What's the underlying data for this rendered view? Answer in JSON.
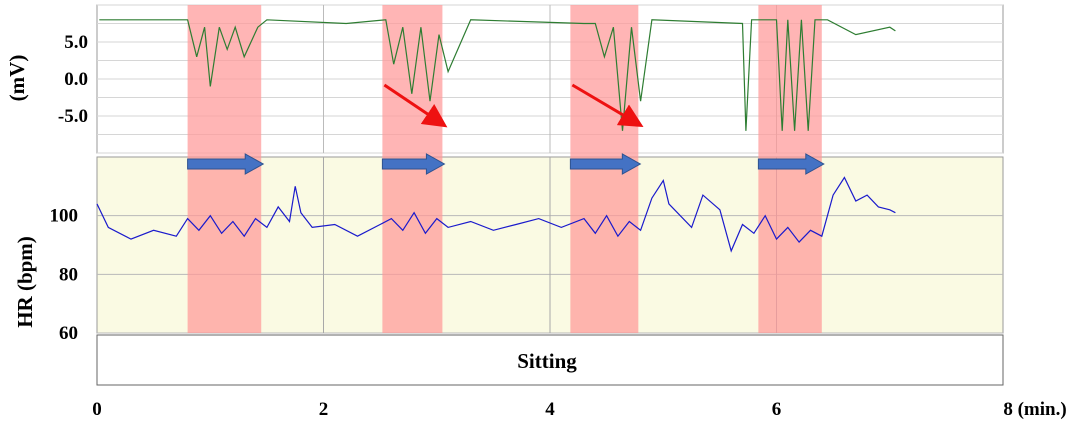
{
  "chart_data": [
    {
      "type": "line",
      "panel": "top",
      "ylabel": "(mV)",
      "yticks": [
        "5.0",
        "0.0",
        "-5.0"
      ],
      "ylim": [
        -10,
        10
      ],
      "series": [
        {
          "color": "#2e7d32",
          "x": [
            0.02,
            0.8,
            0.88,
            0.95,
            1.0,
            1.08,
            1.15,
            1.22,
            1.3,
            1.42,
            1.5,
            2.2,
            2.55,
            2.62,
            2.7,
            2.78,
            2.86,
            2.94,
            3.02,
            3.1,
            3.3,
            4.3,
            4.4,
            4.48,
            4.56,
            4.64,
            4.72,
            4.8,
            4.9,
            5.7,
            5.73,
            5.78,
            6.0,
            6.05,
            6.1,
            6.16,
            6.22,
            6.28,
            6.34,
            6.45,
            6.7,
            7.0,
            7.05
          ],
          "y": [
            8,
            8,
            3,
            7,
            -1,
            7,
            4,
            7,
            3,
            7,
            8,
            7.5,
            8,
            2,
            7,
            -2,
            7,
            -3,
            6,
            1,
            8,
            7.5,
            7.5,
            3,
            7,
            -7,
            7,
            -3,
            8,
            7.5,
            -7,
            8,
            8,
            -7,
            8,
            -7,
            8,
            -7,
            8,
            8,
            6,
            7,
            6.5
          ]
        }
      ]
    },
    {
      "type": "line",
      "panel": "bottom",
      "ylabel": "HR (bpm)",
      "yticks": [
        "100",
        "80",
        "60"
      ],
      "ylim": [
        60,
        120
      ],
      "series": [
        {
          "color": "#1a1acc",
          "x": [
            0.0,
            0.1,
            0.3,
            0.5,
            0.7,
            0.8,
            0.9,
            1.0,
            1.1,
            1.2,
            1.3,
            1.4,
            1.5,
            1.6,
            1.7,
            1.75,
            1.8,
            1.9,
            2.1,
            2.3,
            2.5,
            2.6,
            2.7,
            2.8,
            2.9,
            3.0,
            3.1,
            3.3,
            3.5,
            3.7,
            3.9,
            4.1,
            4.3,
            4.4,
            4.5,
            4.6,
            4.7,
            4.8,
            4.9,
            5.0,
            5.05,
            5.1,
            5.25,
            5.35,
            5.5,
            5.6,
            5.7,
            5.8,
            5.9,
            6.0,
            6.1,
            6.2,
            6.3,
            6.4,
            6.5,
            6.6,
            6.7,
            6.8,
            6.9,
            7.0,
            7.05
          ],
          "y": [
            104,
            96,
            92,
            95,
            93,
            99,
            95,
            100,
            94,
            98,
            93,
            99,
            96,
            103,
            98,
            110,
            101,
            96,
            97,
            93,
            97,
            99,
            95,
            101,
            94,
            99,
            96,
            98,
            95,
            97,
            99,
            96,
            99,
            94,
            100,
            93,
            98,
            95,
            106,
            112,
            104,
            102,
            96,
            107,
            102,
            88,
            97,
            94,
            100,
            92,
            96,
            91,
            95,
            93,
            107,
            113,
            105,
            107,
            103,
            102,
            101
          ]
        }
      ]
    }
  ],
  "xaxis": {
    "ticks": [
      "0",
      "2",
      "4",
      "6"
    ],
    "end_label": "8 (min.)",
    "xlim": [
      0,
      8
    ]
  },
  "condition_label": "Sitting",
  "highlight_intervals": [
    [
      0.8,
      1.45
    ],
    [
      2.52,
      3.05
    ],
    [
      4.18,
      4.78
    ],
    [
      5.84,
      6.4
    ]
  ],
  "colors": {
    "highlight": "#ff9999",
    "bottom_background": "#fafae3",
    "arrow_red": "#ee1111",
    "arrow_blue": "#4472c4"
  }
}
